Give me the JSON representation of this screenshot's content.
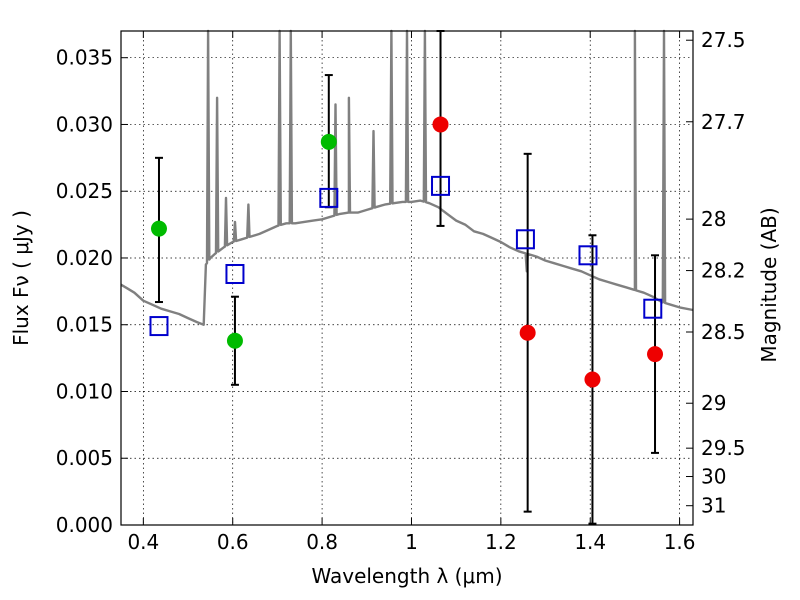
{
  "chart_data": {
    "type": "scatter",
    "xlabel": "Wavelength  λ (μm)",
    "ylabel_left": "Flux  Fν  ( μJy )",
    "ylabel_right": "Magnitude (AB)",
    "xlim": [
      0.35,
      1.63
    ],
    "ylim": [
      0.0,
      0.037
    ],
    "grid": true,
    "x_ticks": [
      {
        "value": 0.4,
        "label": "0.4"
      },
      {
        "value": 0.6,
        "label": "0.6"
      },
      {
        "value": 0.8,
        "label": "0.8"
      },
      {
        "value": 1.0,
        "label": "1"
      },
      {
        "value": 1.2,
        "label": "1.2"
      },
      {
        "value": 1.4,
        "label": "1.4"
      },
      {
        "value": 1.6,
        "label": "1.6"
      }
    ],
    "y_ticks": [
      {
        "value": 0.0,
        "label": "0.000"
      },
      {
        "value": 0.005,
        "label": "0.005"
      },
      {
        "value": 0.01,
        "label": "0.010"
      },
      {
        "value": 0.015,
        "label": "0.015"
      },
      {
        "value": 0.02,
        "label": "0.020"
      },
      {
        "value": 0.025,
        "label": "0.025"
      },
      {
        "value": 0.03,
        "label": "0.030"
      },
      {
        "value": 0.035,
        "label": "0.035"
      }
    ],
    "right_ticks": [
      {
        "mag": 27.5,
        "label": "27.5"
      },
      {
        "mag": 27.7,
        "label": "27.7"
      },
      {
        "mag": 28.0,
        "label": "28"
      },
      {
        "mag": 28.2,
        "label": "28.2"
      },
      {
        "mag": 28.5,
        "label": "28.5"
      },
      {
        "mag": 29.0,
        "label": "29"
      },
      {
        "mag": 29.5,
        "label": "29.5"
      },
      {
        "mag": 30.0,
        "label": "30"
      },
      {
        "mag": 31.0,
        "label": "31"
      }
    ],
    "colors": {
      "model": "#808080",
      "green": "#00bb00",
      "red": "#ee0000",
      "blue_square": "#0000cc",
      "errorbar": "#000000"
    },
    "model_spectrum": {
      "continuum_x": [
        0.35,
        0.36,
        0.38,
        0.4,
        0.42,
        0.44,
        0.46,
        0.48,
        0.5,
        0.52,
        0.535,
        0.54,
        0.55,
        0.56,
        0.58,
        0.6,
        0.62,
        0.64,
        0.66,
        0.68,
        0.7,
        0.72,
        0.74,
        0.76,
        0.78,
        0.8,
        0.82,
        0.84,
        0.86,
        0.88,
        0.9,
        0.92,
        0.94,
        0.96,
        0.98,
        1.0,
        1.02,
        1.04,
        1.06,
        1.08,
        1.1,
        1.12,
        1.14,
        1.16,
        1.18,
        1.2,
        1.22,
        1.24,
        1.26,
        1.28,
        1.3,
        1.32,
        1.34,
        1.36,
        1.38,
        1.4,
        1.42,
        1.44,
        1.46,
        1.48,
        1.5,
        1.52,
        1.54,
        1.56,
        1.58,
        1.6,
        1.63
      ],
      "continuum_y": [
        0.018,
        0.0178,
        0.0174,
        0.0168,
        0.0165,
        0.0162,
        0.016,
        0.0158,
        0.0155,
        0.0152,
        0.015,
        0.0195,
        0.02,
        0.0203,
        0.0208,
        0.0212,
        0.0214,
        0.0216,
        0.0218,
        0.0221,
        0.0224,
        0.0226,
        0.0226,
        0.0227,
        0.0228,
        0.0229,
        0.0231,
        0.0233,
        0.0234,
        0.0234,
        0.0236,
        0.0238,
        0.024,
        0.0241,
        0.0242,
        0.0242,
        0.0243,
        0.0241,
        0.0238,
        0.0233,
        0.0228,
        0.0225,
        0.022,
        0.0218,
        0.0215,
        0.0212,
        0.0208,
        0.0205,
        0.0203,
        0.0201,
        0.0198,
        0.0196,
        0.0194,
        0.0192,
        0.019,
        0.0187,
        0.0184,
        0.0182,
        0.018,
        0.0178,
        0.0176,
        0.0174,
        0.0171,
        0.0167,
        0.0165,
        0.0163,
        0.0161
      ],
      "emission_lines": [
        {
          "x": 0.545,
          "peak": 0.037
        },
        {
          "x": 0.565,
          "peak": 0.032
        },
        {
          "x": 0.585,
          "peak": 0.0245
        },
        {
          "x": 0.605,
          "peak": 0.0227
        },
        {
          "x": 0.635,
          "peak": 0.024
        },
        {
          "x": 0.705,
          "peak": 0.037
        },
        {
          "x": 0.73,
          "peak": 0.037
        },
        {
          "x": 0.83,
          "peak": 0.0315
        },
        {
          "x": 0.86,
          "peak": 0.032
        },
        {
          "x": 0.915,
          "peak": 0.0295
        },
        {
          "x": 0.955,
          "peak": 0.037
        },
        {
          "x": 0.99,
          "peak": 0.037
        },
        {
          "x": 1.03,
          "peak": 0.037
        },
        {
          "x": 1.5,
          "peak": 0.037
        },
        {
          "x": 1.565,
          "peak": 0.037
        }
      ],
      "absorption_lines": [
        {
          "x": 1.258,
          "trough": 0.019
        }
      ]
    },
    "series": [
      {
        "marker": "circle-green",
        "points": [
          {
            "x": 0.435,
            "y": 0.0222,
            "yerr_low": 0.0167,
            "yerr_high": 0.0275
          },
          {
            "x": 0.605,
            "y": 0.0138,
            "yerr_low": 0.0105,
            "yerr_high": 0.0171
          },
          {
            "x": 0.815,
            "y": 0.0287,
            "yerr_low": 0.0238,
            "yerr_high": 0.0337
          }
        ]
      },
      {
        "marker": "circle-red",
        "points": [
          {
            "x": 1.065,
            "y": 0.03,
            "yerr_low": 0.0224,
            "yerr_high": 0.037
          },
          {
            "x": 1.26,
            "y": 0.0144,
            "yerr_low": 0.001,
            "yerr_high": 0.0278
          },
          {
            "x": 1.405,
            "y": 0.0109,
            "yerr_low": 0.0001,
            "yerr_high": 0.0217
          },
          {
            "x": 1.545,
            "y": 0.0128,
            "yerr_low": 0.0054,
            "yerr_high": 0.0202
          }
        ]
      },
      {
        "marker": "square-blue",
        "points": [
          {
            "x": 0.435,
            "y": 0.0149
          },
          {
            "x": 0.605,
            "y": 0.0188
          },
          {
            "x": 0.815,
            "y": 0.0245
          },
          {
            "x": 1.065,
            "y": 0.0254
          },
          {
            "x": 1.255,
            "y": 0.0214
          },
          {
            "x": 1.395,
            "y": 0.0202
          },
          {
            "x": 1.54,
            "y": 0.0162
          }
        ]
      }
    ]
  }
}
